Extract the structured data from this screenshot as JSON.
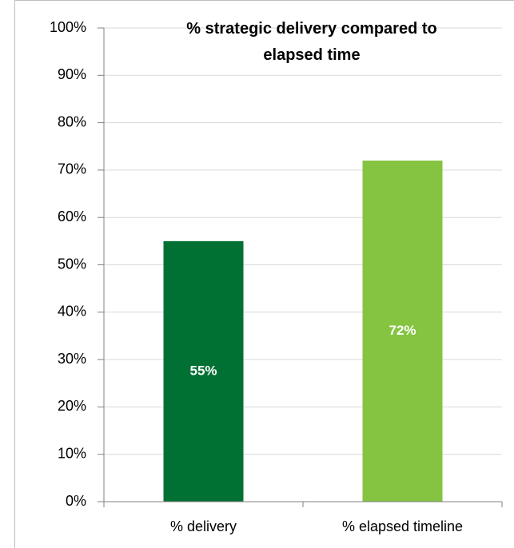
{
  "chart_data": {
    "type": "bar",
    "title": "% strategic delivery compared to elapsed time",
    "categories": [
      "% delivery",
      "% elapsed timeline"
    ],
    "values": [
      55,
      72
    ],
    "value_labels": [
      "55%",
      "72%"
    ],
    "colors": [
      "#007033",
      "#84c441"
    ],
    "ylim": [
      0,
      100
    ],
    "yticks": [
      {
        "value": 0,
        "label": "0%"
      },
      {
        "value": 10,
        "label": "10%"
      },
      {
        "value": 20,
        "label": "20%"
      },
      {
        "value": 30,
        "label": "30%"
      },
      {
        "value": 40,
        "label": "40%"
      },
      {
        "value": 50,
        "label": "50%"
      },
      {
        "value": 60,
        "label": "60%"
      },
      {
        "value": 70,
        "label": "70%"
      },
      {
        "value": 80,
        "label": "80%"
      },
      {
        "value": 90,
        "label": "90%"
      },
      {
        "value": 100,
        "label": "100%"
      }
    ],
    "grid": true
  }
}
